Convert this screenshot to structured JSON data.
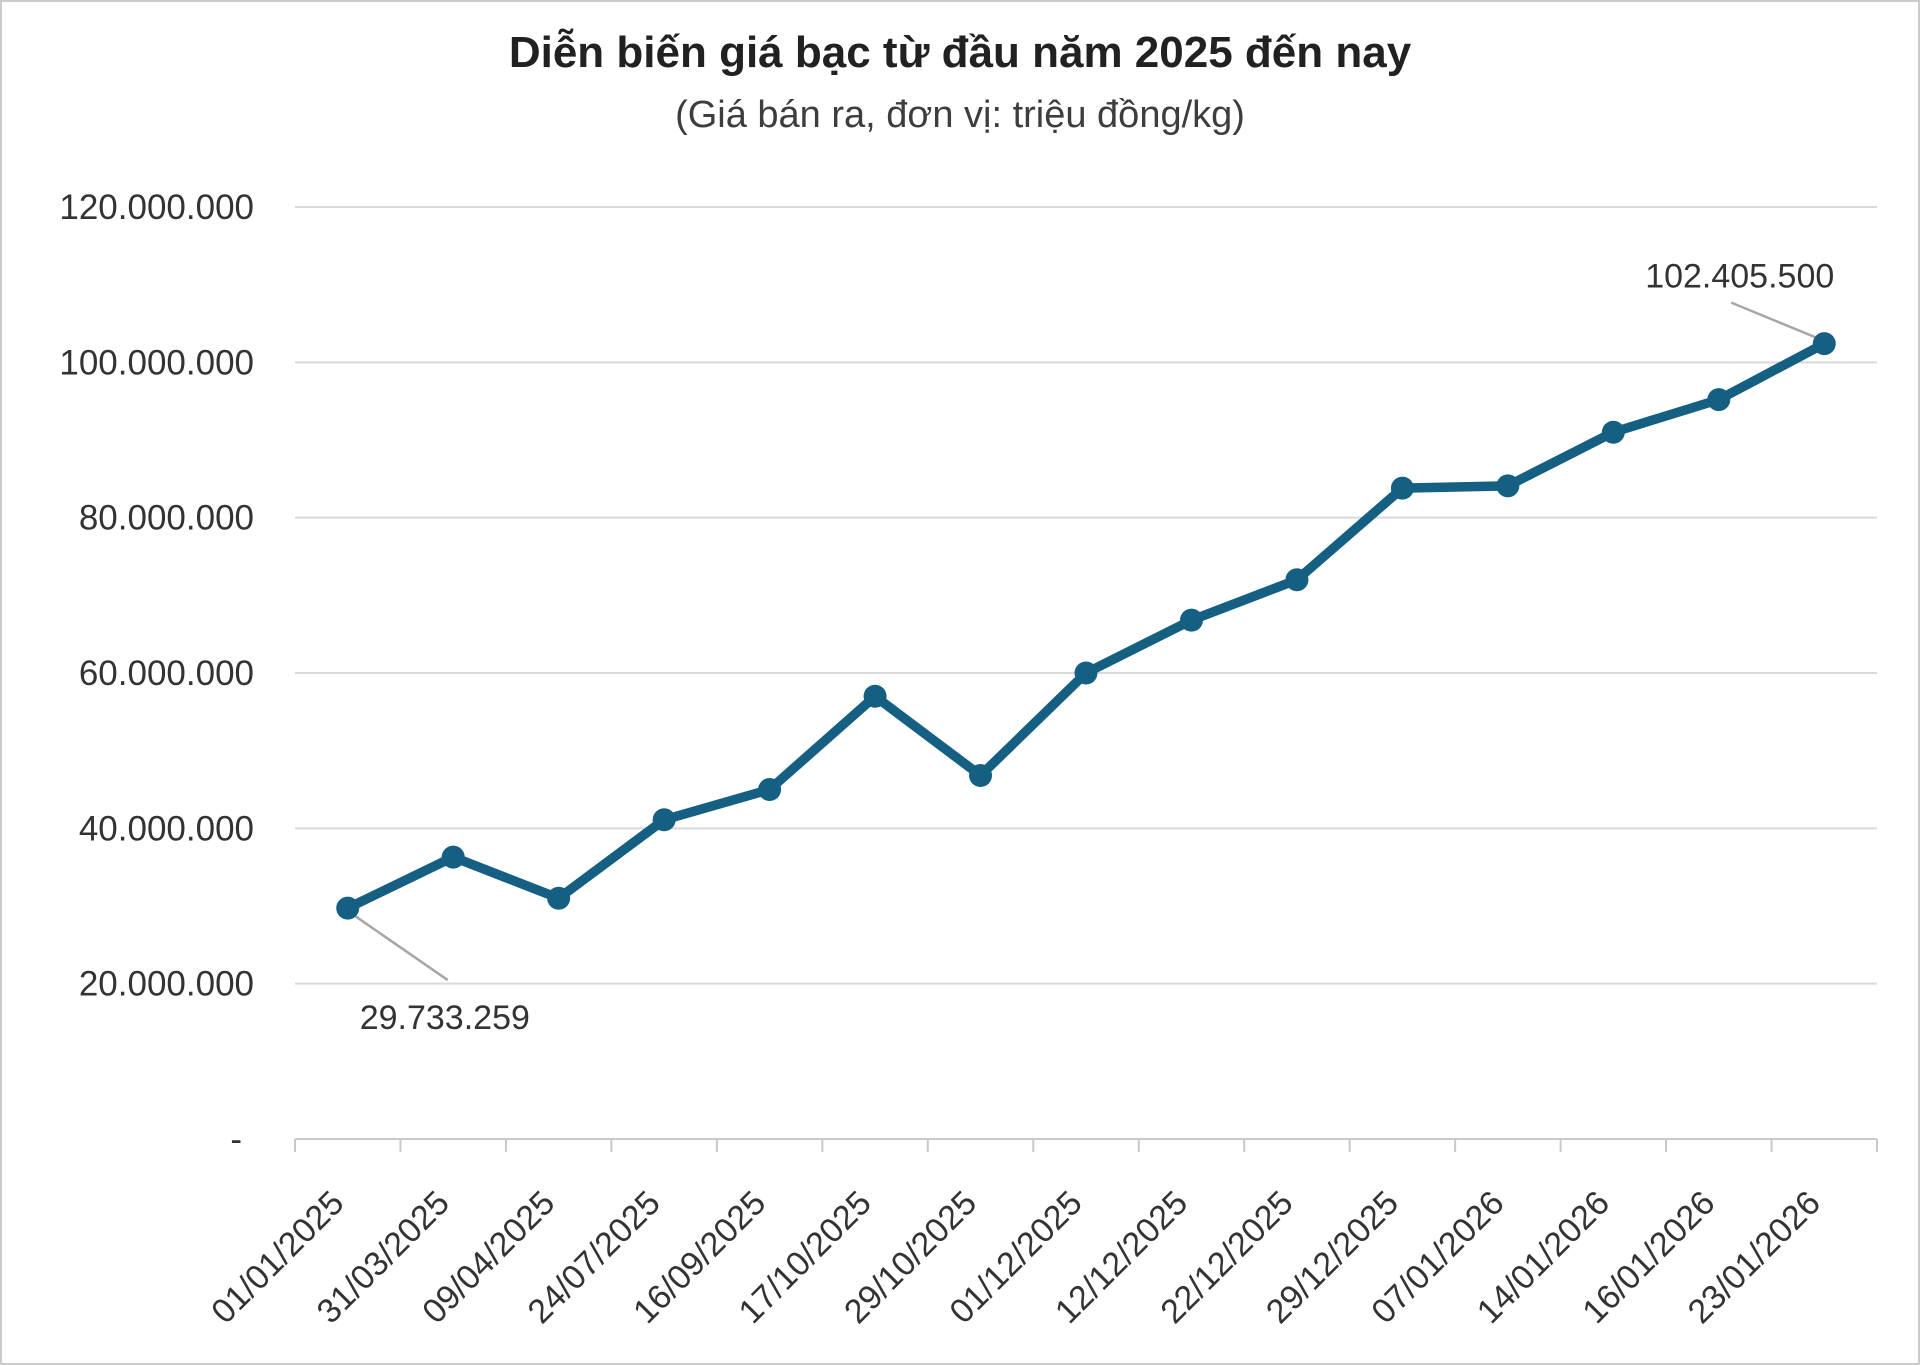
{
  "chart_data": {
    "type": "line",
    "title": "Diễn biến giá bạc từ đầu năm 2025 đến nay",
    "subtitle": "(Giá bán ra, đơn vị: triệu đồng/kg)",
    "categories": [
      "01/01/2025",
      "31/03/2025",
      "09/04/2025",
      "24/07/2025",
      "16/09/2025",
      "17/10/2025",
      "29/10/2025",
      "01/12/2025",
      "12/12/2025",
      "22/12/2025",
      "29/12/2025",
      "07/01/2026",
      "14/01/2026",
      "16/01/2026",
      "23/01/2026"
    ],
    "values": [
      29733259,
      36300000,
      31000000,
      41100000,
      45000000,
      57000000,
      46800000,
      60000000,
      66800000,
      72000000,
      83800000,
      84100000,
      91000000,
      95200000,
      102405500
    ],
    "ylim": [
      0,
      120000000
    ],
    "y_ticks": [
      {
        "value": 120000000,
        "label": "120.000.000"
      },
      {
        "value": 100000000,
        "label": "100.000.000"
      },
      {
        "value": 80000000,
        "label": "80.000.000"
      },
      {
        "value": 60000000,
        "label": "60.000.000"
      },
      {
        "value": 40000000,
        "label": "40.000.000"
      },
      {
        "value": 20000000,
        "label": "20.000.000"
      },
      {
        "value": 0,
        "label": "-"
      }
    ],
    "annotations": [
      {
        "point_index": 0,
        "label": "29.733.259",
        "placement": "below"
      },
      {
        "point_index": 14,
        "label": "102.405.500",
        "placement": "above"
      }
    ],
    "grid": true,
    "legend": "none",
    "colors": {
      "line": "#156082",
      "grid": "#D9D9D9",
      "axis": "#C9C9C9",
      "leader": "#A6A6A6",
      "title": "#212121",
      "subtitle": "#3D3D3D",
      "tick_label": "#333333"
    }
  }
}
